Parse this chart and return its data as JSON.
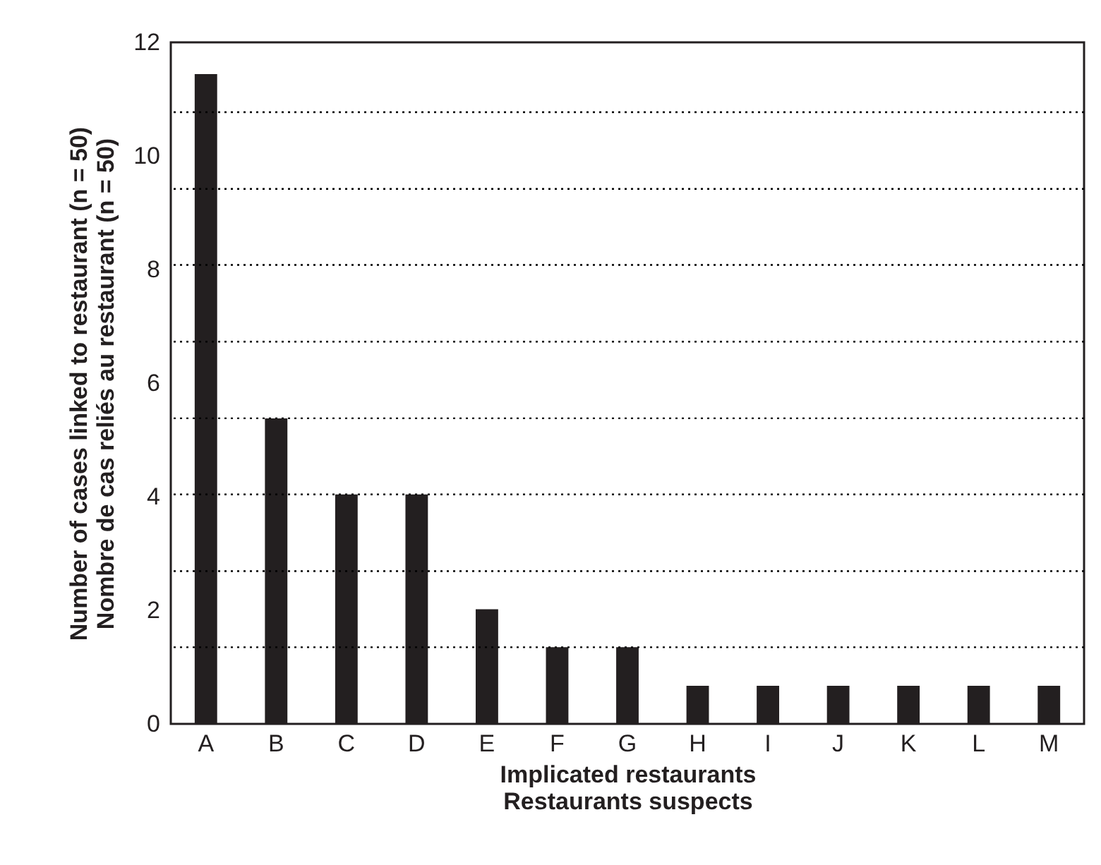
{
  "chart_data": {
    "type": "bar",
    "xlabel": "Implicated restaurants\nRestaurants suspects",
    "ylabel": "Number of cases linked to restaurant (n = 50)\nNombre de cas reliés au restaurant (n = 50)",
    "categories": [
      "A",
      "B",
      "C",
      "D",
      "E",
      "F",
      "G",
      "H",
      "I",
      "J",
      "K",
      "L",
      "M"
    ],
    "values": [
      11.44,
      5.38,
      4.04,
      4.04,
      2.02,
      1.35,
      1.35,
      0.67,
      0.67,
      0.67,
      0.67,
      0.67,
      0.67
    ],
    "color": "#231f20",
    "ylim": [
      0,
      12
    ],
    "yticks": [
      0,
      2,
      4,
      6,
      8,
      10,
      12
    ],
    "ref_lines": [
      {
        "axis": "y",
        "value": 1.35,
        "line_style": "dotted"
      },
      {
        "axis": "y",
        "value": 2.69,
        "line_style": "dotted"
      },
      {
        "axis": "y",
        "value": 4.04,
        "line_style": "dotted"
      },
      {
        "axis": "y",
        "value": 5.38,
        "line_style": "dotted"
      },
      {
        "axis": "y",
        "value": 6.73,
        "line_style": "dotted"
      },
      {
        "axis": "y",
        "value": 8.08,
        "line_style": "dotted"
      },
      {
        "axis": "y",
        "value": 9.42,
        "line_style": "dotted"
      },
      {
        "axis": "y",
        "value": 10.77,
        "line_style": "dotted"
      }
    ],
    "grid": false
  }
}
